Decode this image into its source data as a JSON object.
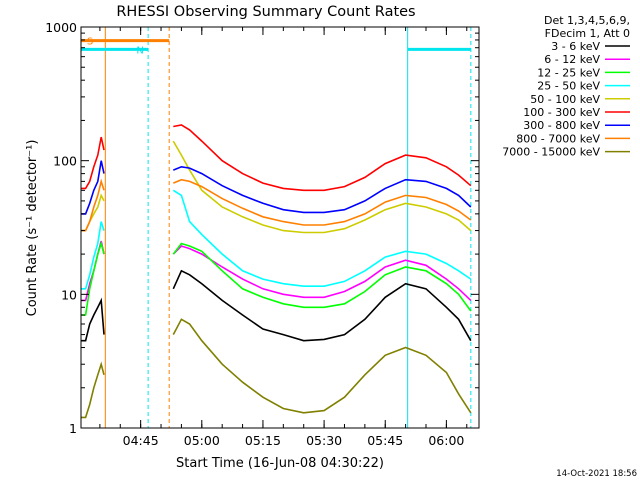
{
  "chart_data": {
    "type": "line",
    "title": "RHESSI Observing Summary Count Rates",
    "xlabel": "Start Time (16-Jun-08 04:30:22)",
    "ylabel": "Count Rate (s⁻¹ detector⁻¹)",
    "y_scale": "log",
    "ylim": [
      1,
      1000
    ],
    "xlim": [
      "04:30:22",
      "06:08:00"
    ],
    "x_ticks": [
      "04:45",
      "05:00",
      "05:15",
      "05:30",
      "05:45",
      "06:00"
    ],
    "y_ticks": [
      "1",
      "10",
      "100",
      "1000"
    ],
    "grid": false,
    "legend_position": "right, outside plot",
    "legend_header": [
      "Det 1,3,4,5,6,9,",
      "FDecim 1, Att 0"
    ],
    "date_stamp": "14-Oct-2021 18:56",
    "markers": {
      "orange_bar": {
        "label": "S",
        "color": "#ff8000",
        "from": "04:30:22",
        "to": "04:52:00",
        "level": 790
      },
      "cyan_bars": [
        {
          "label": "N",
          "color": "#00e5ee",
          "from": "04:30:22",
          "to": "04:46:50",
          "level": 680
        },
        {
          "label": "",
          "color": "#00e5ee",
          "from": "05:50:30",
          "to": "06:06:00",
          "level": 680
        }
      ],
      "vertical_lines": [
        {
          "time": "04:36:20",
          "color": "#ff8000",
          "style": "solid"
        },
        {
          "time": "04:46:50",
          "color": "#00e5ee",
          "style": "dashed"
        },
        {
          "time": "04:52:00",
          "color": "#ff8000",
          "style": "dashed"
        },
        {
          "time": "05:50:30",
          "color": "#00e5ee",
          "style": "solid"
        },
        {
          "time": "06:06:00",
          "color": "#00e5ee",
          "style": "dashed"
        }
      ]
    },
    "segments": [
      {
        "x_range": [
          "04:30:22",
          "04:36:20"
        ],
        "x": [
          "04:30:22",
          "04:31:30",
          "04:32:30",
          "04:33:30",
          "04:34:30",
          "04:35:20",
          "04:36:00"
        ]
      },
      {
        "x_range": [
          "04:53:00",
          "06:06:00"
        ],
        "x": [
          "04:53:00",
          "04:55:00",
          "04:57:00",
          "05:00:00",
          "05:05:00",
          "05:10:00",
          "05:15:00",
          "05:20:00",
          "05:25:00",
          "05:30:00",
          "05:35:00",
          "05:40:00",
          "05:45:00",
          "05:50:00",
          "05:55:00",
          "06:00:00",
          "06:03:00",
          "06:06:00"
        ]
      }
    ],
    "series": [
      {
        "name": "3 - 6 keV",
        "color": "#000000",
        "values": [
          [
            4.5,
            4.5,
            6,
            7,
            8,
            9,
            5
          ],
          [
            11,
            15,
            14,
            12,
            9,
            7,
            5.5,
            5,
            4.5,
            4.6,
            5,
            6.5,
            9.5,
            12,
            11,
            8,
            6.5,
            4.5
          ]
        ]
      },
      {
        "name": "6 - 12 keV",
        "color": "#ff00ff",
        "values": [
          [
            9,
            9,
            12,
            15,
            20,
            25,
            20
          ],
          [
            20,
            23,
            22,
            20,
            16,
            13,
            11,
            10,
            9.5,
            9.5,
            10.5,
            12.5,
            16,
            18,
            16.5,
            13,
            11,
            9
          ]
        ]
      },
      {
        "name": "12 - 25 keV",
        "color": "#00ff00",
        "values": [
          [
            7,
            7,
            11,
            15,
            20,
            24,
            20
          ],
          [
            20,
            24,
            23,
            21,
            15,
            11,
            9.5,
            8.5,
            8,
            8,
            8.5,
            10.5,
            14,
            16,
            15,
            12,
            10,
            7.5
          ]
        ]
      },
      {
        "name": "25 - 50 keV",
        "color": "#00ffff",
        "values": [
          [
            11,
            11,
            14,
            19,
            24,
            35,
            30
          ],
          [
            60,
            55,
            35,
            28,
            20,
            15,
            13,
            12,
            11.5,
            11.5,
            12.5,
            15,
            19,
            21,
            20,
            17,
            15,
            13
          ]
        ]
      },
      {
        "name": "50 - 100 keV",
        "color": "#cccc00",
        "values": [
          [
            30,
            30,
            35,
            40,
            45,
            55,
            50
          ],
          [
            140,
            110,
            85,
            60,
            45,
            38,
            33,
            30,
            29,
            29,
            31,
            36,
            43,
            48,
            45,
            40,
            36,
            30
          ]
        ]
      },
      {
        "name": "100 - 300 keV",
        "color": "#ff0000",
        "values": [
          [
            62,
            62,
            70,
            90,
            110,
            150,
            120
          ],
          [
            180,
            185,
            170,
            140,
            100,
            80,
            68,
            62,
            60,
            60,
            64,
            75,
            95,
            110,
            105,
            90,
            78,
            65
          ]
        ]
      },
      {
        "name": "300 - 800 keV",
        "color": "#0000ff",
        "values": [
          [
            40,
            40,
            48,
            60,
            70,
            100,
            80
          ],
          [
            85,
            90,
            88,
            80,
            65,
            55,
            48,
            43,
            41,
            41,
            43,
            50,
            62,
            72,
            70,
            62,
            55,
            45
          ]
        ]
      },
      {
        "name": "800 - 7000 keV",
        "color": "#ff8000",
        "values": [
          [
            30,
            30,
            35,
            45,
            55,
            70,
            60
          ],
          [
            68,
            72,
            70,
            64,
            52,
            44,
            38,
            35,
            33,
            33,
            35,
            40,
            49,
            55,
            53,
            47,
            42,
            36
          ]
        ]
      },
      {
        "name": "7000 - 15000 keV",
        "color": "#808000",
        "values": [
          [
            1.2,
            1.2,
            1.5,
            2,
            2.5,
            3,
            2.5
          ],
          [
            5,
            6.5,
            6,
            4.5,
            3,
            2.2,
            1.7,
            1.4,
            1.3,
            1.35,
            1.7,
            2.5,
            3.5,
            4,
            3.5,
            2.6,
            1.8,
            1.3
          ]
        ]
      }
    ]
  }
}
